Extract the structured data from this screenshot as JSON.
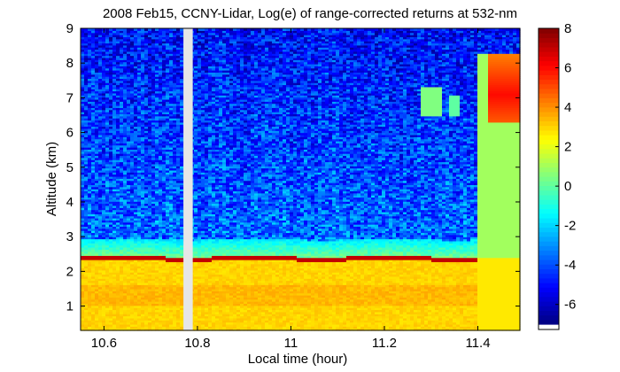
{
  "chart_data": {
    "type": "heatmap",
    "title": "2008 Feb15, CCNY-Lidar, Log(e) of range-corrected returns at 532-nm",
    "xlabel": "Local time (hour)",
    "ylabel": "Altitude (km)",
    "xlim": [
      10.55,
      11.49
    ],
    "ylim": [
      0.3,
      9
    ],
    "xticks": [
      10.6,
      10.8,
      11,
      11.2,
      11.4
    ],
    "yticks": [
      1,
      2,
      3,
      4,
      5,
      6,
      7,
      8,
      9
    ],
    "colorbar": {
      "range": [
        -7,
        8
      ],
      "ticks": [
        -6,
        -4,
        -2,
        0,
        2,
        4,
        6,
        8
      ],
      "colormap": "jet"
    },
    "no_data_gap_hours": [
      10.77,
      10.79
    ],
    "features": {
      "boundary_layer_top_km": 2.38,
      "boundary_layer_top_value": 7,
      "below_layer_value": 3,
      "free_troposphere_value": -3.5,
      "cloud": {
        "time_start": 11.42,
        "time_end": 11.49,
        "alt_base_km": 6.3,
        "alt_top_km": 8.3,
        "value": 6
      },
      "high_signal_end": {
        "time_start": 11.4,
        "alt_top_km": 8.3,
        "value": 1
      }
    }
  }
}
